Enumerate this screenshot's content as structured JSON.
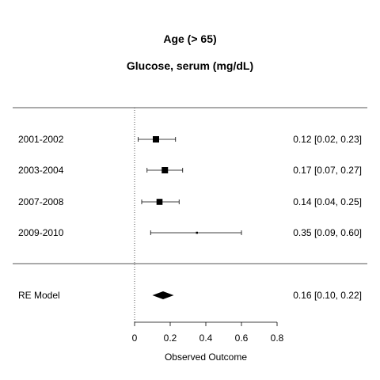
{
  "chart_data": {
    "type": "forest",
    "title": "Age (> 65)",
    "subtitle": "Glucose, serum (mg/dL)",
    "xlabel": "Observed Outcome",
    "xlim": [
      0,
      0.8
    ],
    "xticks": [
      0,
      0.2,
      0.4,
      0.6,
      0.8
    ],
    "xtick_labels": [
      "0",
      "0.2",
      "0.4",
      "0.6",
      "0.8"
    ],
    "reference_line": 0,
    "studies": [
      {
        "label": "2001-2002",
        "estimate": 0.12,
        "ci_lower": 0.02,
        "ci_upper": 0.23,
        "ci_text": "0.12 [0.02, 0.23]",
        "weight": 1.0
      },
      {
        "label": "2003-2004",
        "estimate": 0.17,
        "ci_lower": 0.07,
        "ci_upper": 0.27,
        "ci_text": "0.17 [0.07, 0.27]",
        "weight": 1.0
      },
      {
        "label": "2007-2008",
        "estimate": 0.14,
        "ci_lower": 0.04,
        "ci_upper": 0.25,
        "ci_text": "0.14 [0.04, 0.25]",
        "weight": 0.95
      },
      {
        "label": "2009-2010",
        "estimate": 0.35,
        "ci_lower": 0.09,
        "ci_upper": 0.6,
        "ci_text": "0.35 [0.09, 0.60]",
        "weight": 0.2
      }
    ],
    "summary": {
      "label": "RE Model",
      "estimate": 0.16,
      "ci_lower": 0.1,
      "ci_upper": 0.22,
      "ci_text": "0.16 [0.10, 0.22]"
    }
  }
}
